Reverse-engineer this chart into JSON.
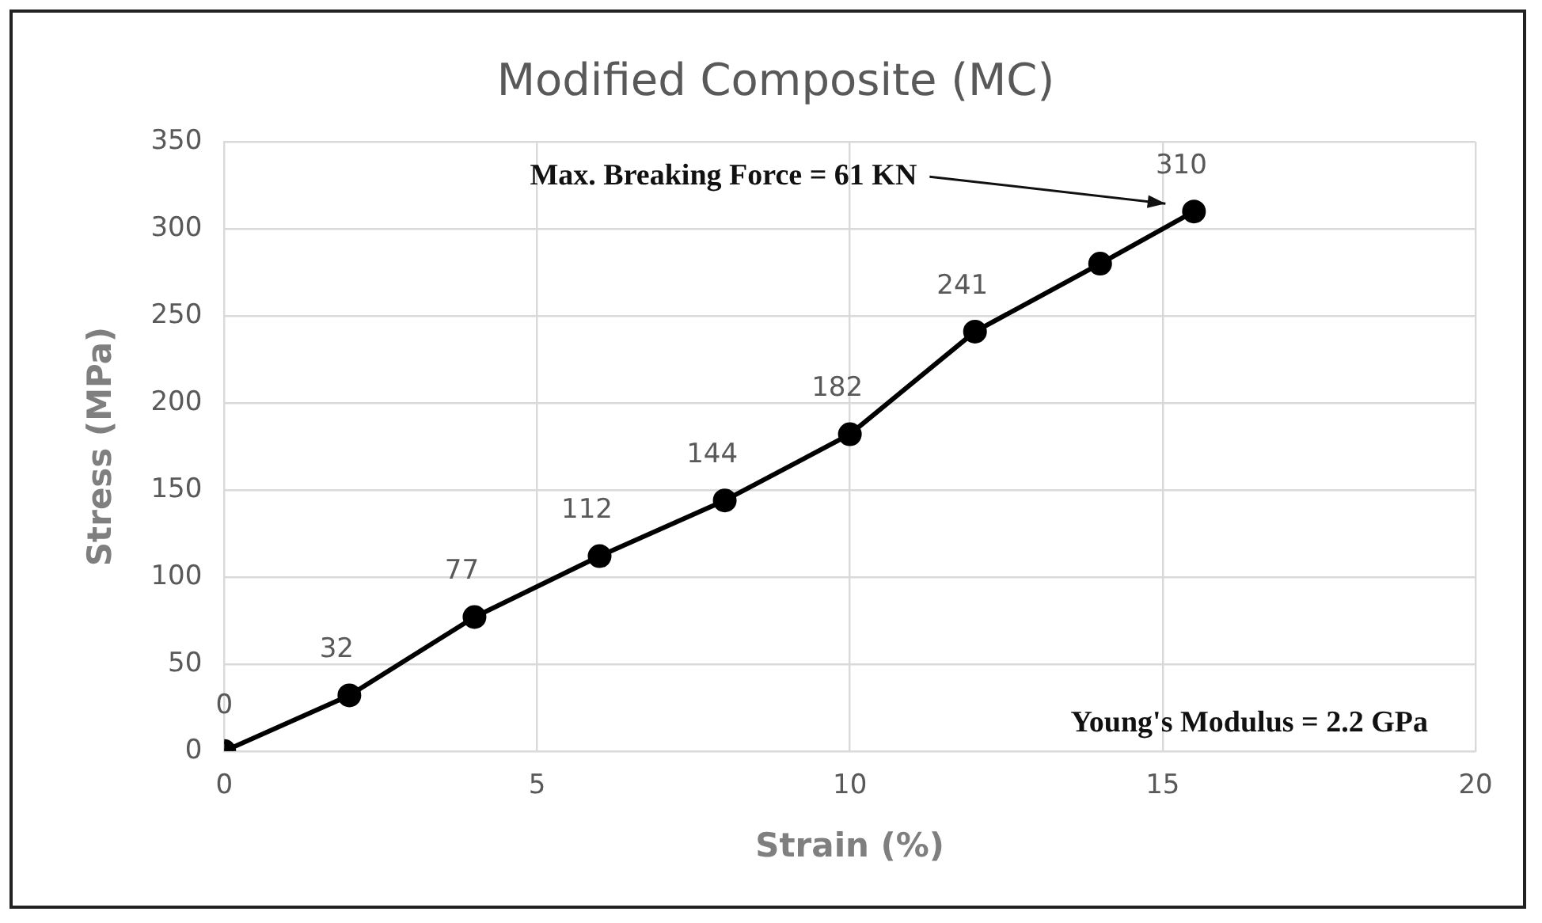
{
  "chart_data": {
    "type": "line",
    "title": "Modified Composite (MC)",
    "xlabel": "Strain (%)",
    "ylabel": "Stress (MPa)",
    "x": [
      0,
      2,
      4,
      6,
      8,
      10,
      12,
      14,
      15.5
    ],
    "series": [
      {
        "color": "#000000",
        "values": [
          0,
          32,
          77,
          112,
          144,
          182,
          241,
          280,
          310
        ],
        "value_labels": [
          "0",
          "32",
          "77",
          "112",
          "144",
          "182",
          "241",
          null,
          "310"
        ]
      }
    ],
    "xlim": [
      0,
      20
    ],
    "xticks": [
      0,
      5,
      10,
      15,
      20
    ],
    "ylim": [
      0,
      350
    ],
    "yticks": [
      0,
      50,
      100,
      150,
      200,
      250,
      300,
      350
    ],
    "grid": true,
    "legend": false,
    "marker": "circle",
    "line_style": "solid",
    "annotations": [
      "Max. Breaking Force = 61 KN",
      "Young's Modulus = 2.2 GPa"
    ]
  }
}
